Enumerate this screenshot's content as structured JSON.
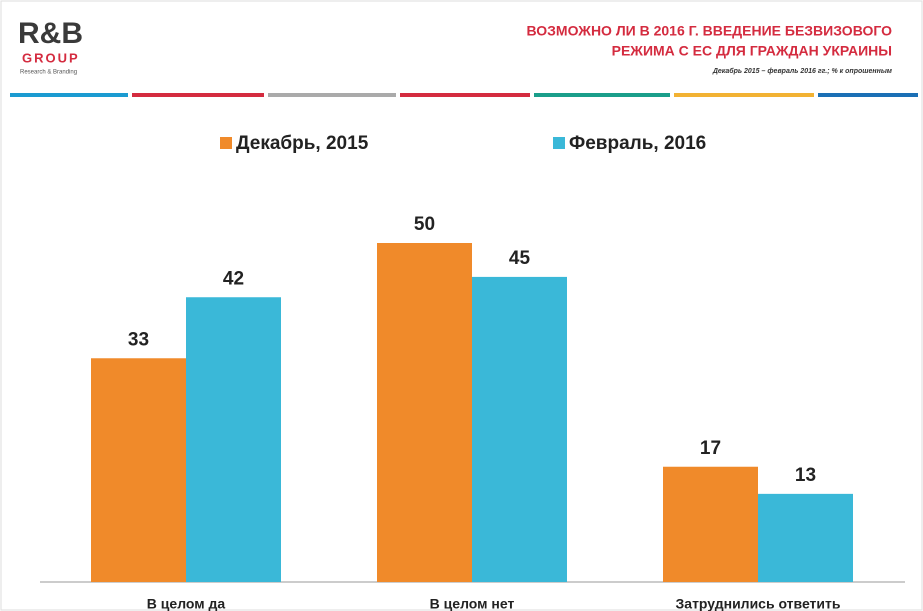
{
  "header": {
    "logo": "R&B",
    "logo_sub": "GROUP",
    "logo_tag": "Research & Branding"
  },
  "chart_data": {
    "type": "bar",
    "title": [
      "ВОЗМОЖНО ЛИ В 2016 Г. ВВЕДЕНИЕ БЕЗВИЗОВОГО",
      "РЕЖИМА С ЕС ДЛЯ ГРАЖДАН УКРАИНЫ"
    ],
    "subtitle": "Декабрь  2015 – февраль 2016 гг.; % к опрошенным",
    "categories": [
      "В целом да",
      "В целом нет",
      "Затруднились ответить"
    ],
    "series": [
      {
        "name": "Декабрь, 2015",
        "color": "#f08a2a",
        "values": [
          33,
          50,
          17
        ]
      },
      {
        "name": "Февраль, 2016",
        "color": "#3ab8d8",
        "values": [
          42,
          45,
          13
        ]
      }
    ]
  }
}
